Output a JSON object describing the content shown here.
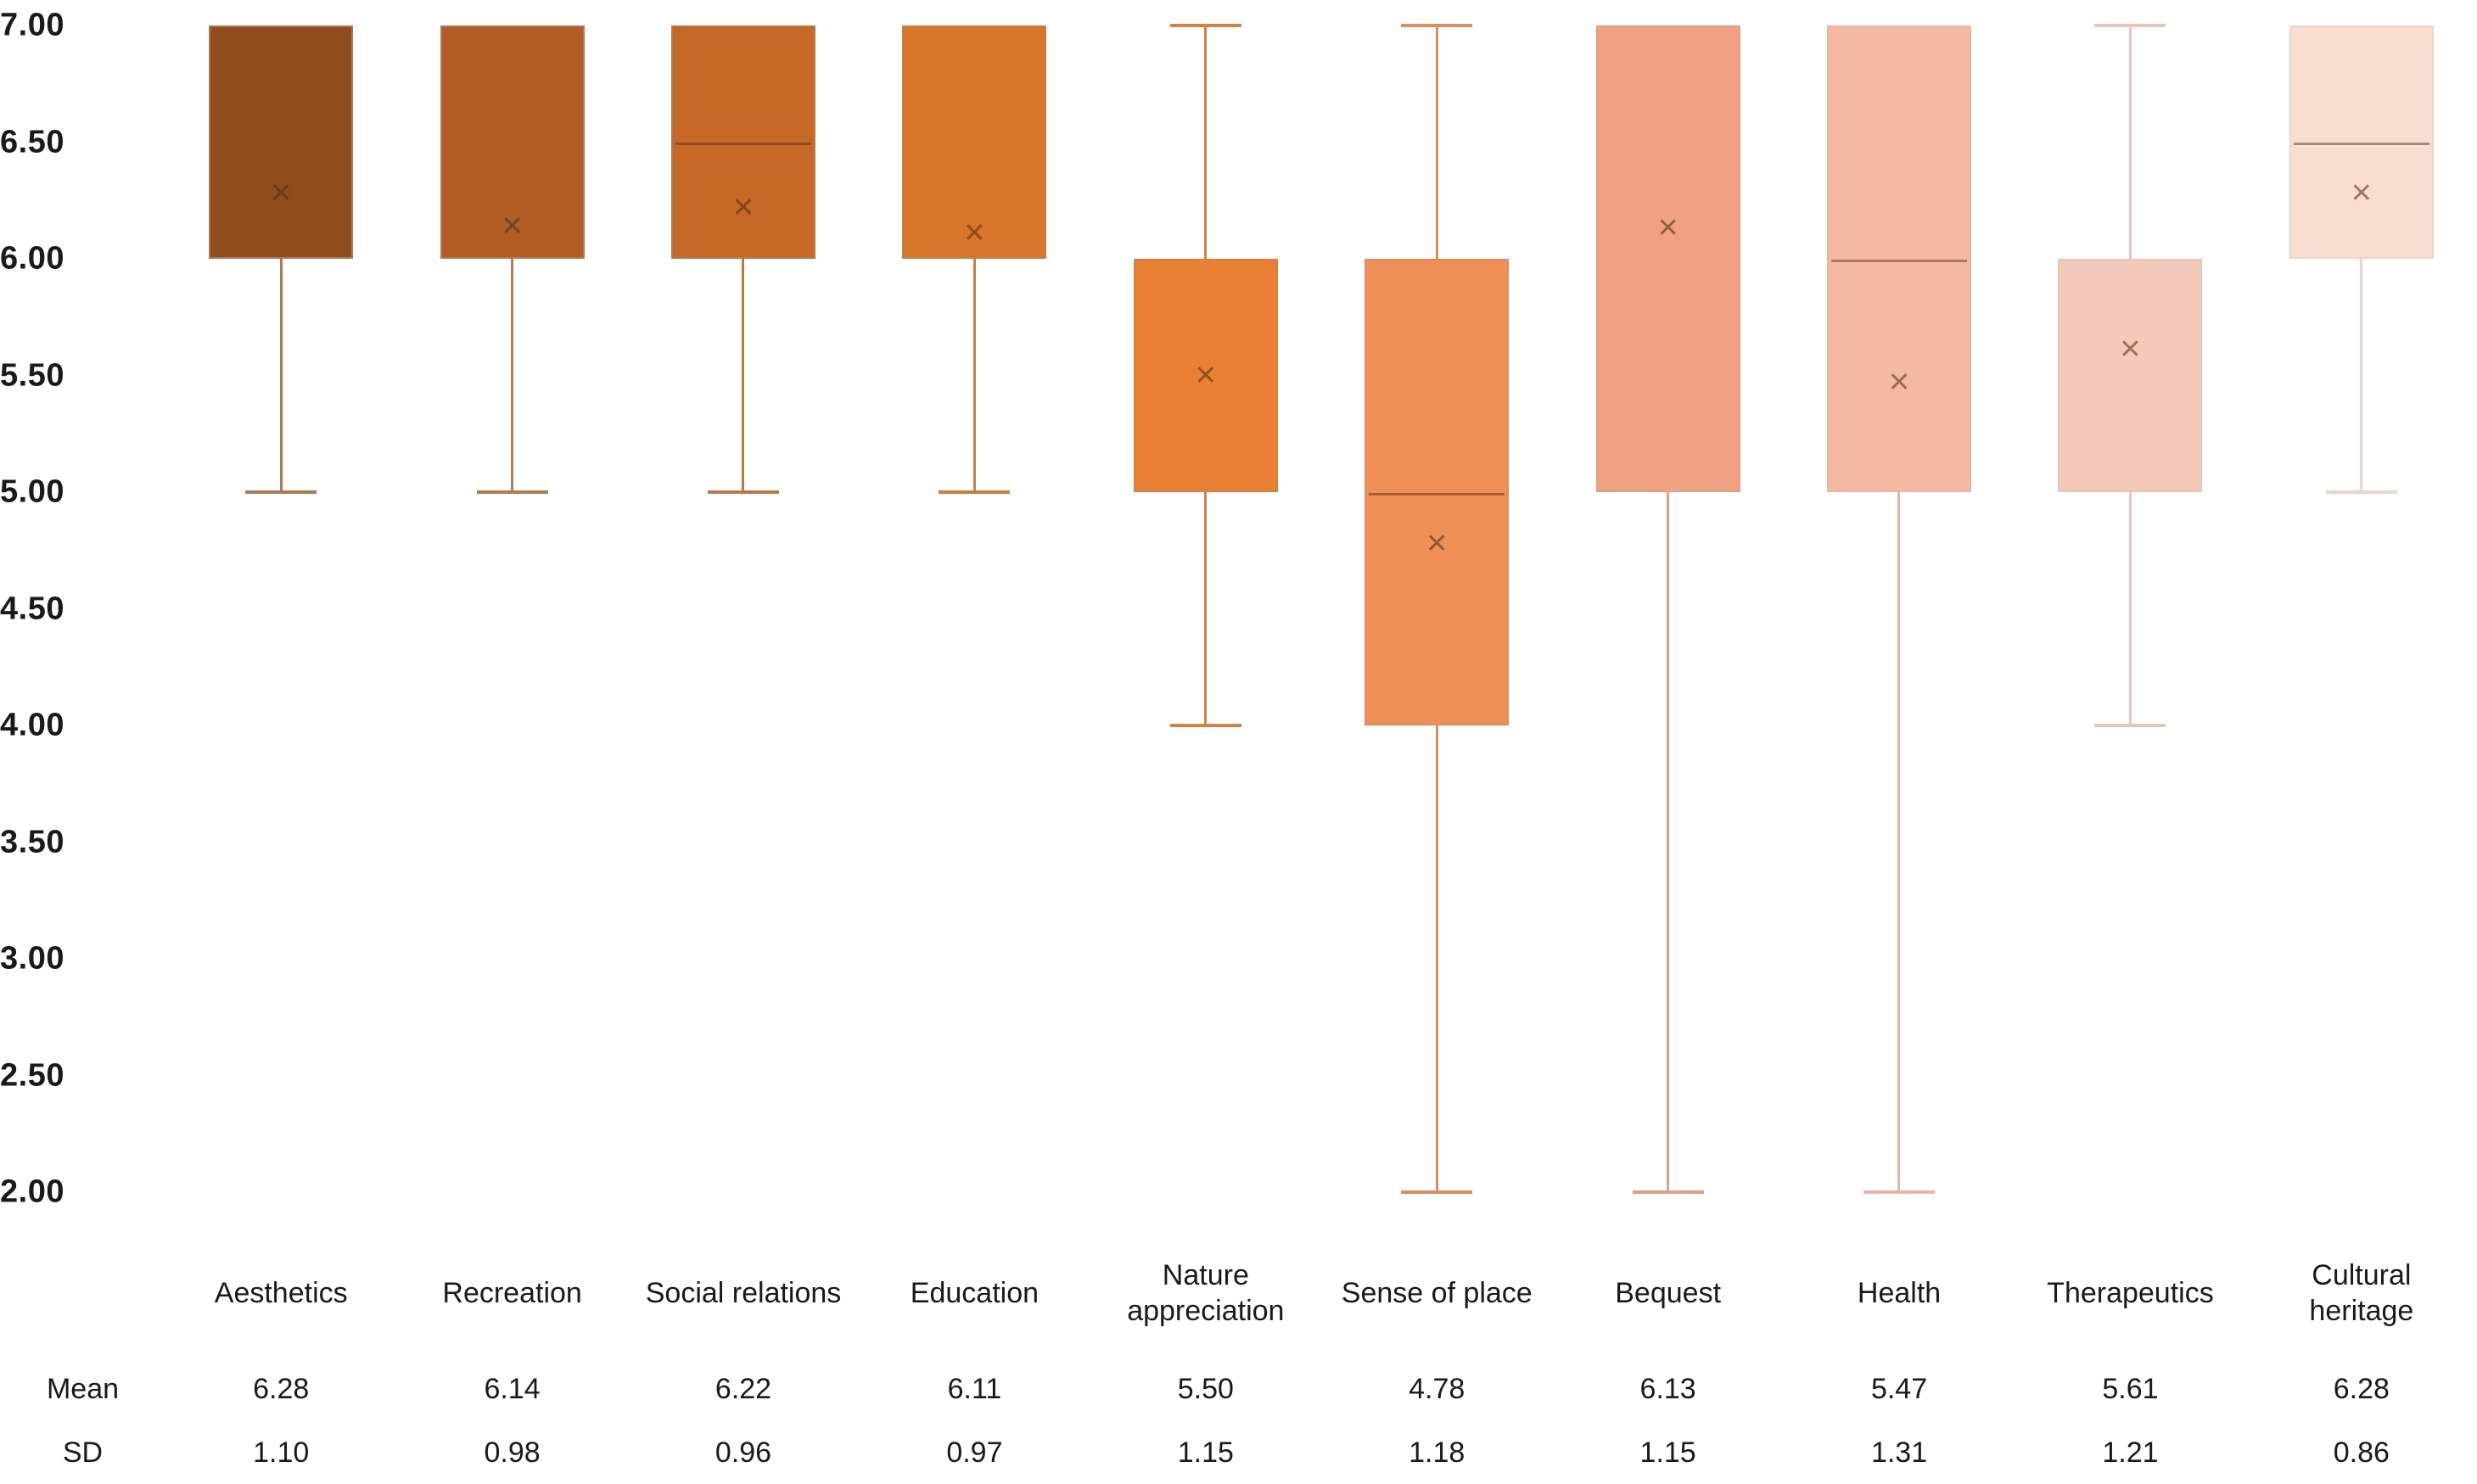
{
  "chart_data": {
    "type": "boxplot",
    "title": "",
    "xlabel": "",
    "ylabel": "",
    "ylim": [
      2.0,
      7.0
    ],
    "grid": false,
    "legend": "none",
    "y_ticks": [
      "7.00",
      "6.50",
      "6.00",
      "5.50",
      "5.00",
      "4.50",
      "4.00",
      "3.50",
      "3.00",
      "2.50",
      "2.00"
    ],
    "categories": [
      "Aesthetics",
      "Recreation",
      "Social relations",
      "Education",
      "Nature appreciation",
      "Sense of place",
      "Bequest",
      "Health",
      "Therapeutics",
      "Cultural heritage"
    ],
    "series": [
      {
        "name": "Aesthetics",
        "q1": 6.0,
        "median": null,
        "q3": 7.0,
        "whisker_low": 5.0,
        "whisker_high": 7.0,
        "mean": 6.28,
        "sd": 1.1,
        "fill": "#8F4D1E",
        "line": "#A97B54"
      },
      {
        "name": "Recreation",
        "q1": 6.0,
        "median": null,
        "q3": 7.0,
        "whisker_low": 5.0,
        "whisker_high": 7.0,
        "mean": 6.14,
        "sd": 0.98,
        "fill": "#B25D26",
        "line": "#B27B50"
      },
      {
        "name": "Social relations",
        "q1": 6.0,
        "median": 6.5,
        "q3": 7.0,
        "whisker_low": 5.0,
        "whisker_high": 7.0,
        "mean": 6.22,
        "sd": 0.96,
        "fill": "#C56828",
        "line": "#B8794A"
      },
      {
        "name": "Education",
        "q1": 6.0,
        "median": null,
        "q3": 7.0,
        "whisker_low": 5.0,
        "whisker_high": 7.0,
        "mean": 6.11,
        "sd": 0.97,
        "fill": "#DA752E",
        "line": "#C67F42"
      },
      {
        "name": "Nature appreciation",
        "q1": 5.0,
        "median": null,
        "q3": 6.0,
        "whisker_low": 4.0,
        "whisker_high": 7.0,
        "mean": 5.5,
        "sd": 1.15,
        "fill": "#E98034",
        "line": "#D08345"
      },
      {
        "name": "Sense of place",
        "q1": 4.0,
        "median": 5.0,
        "q3": 6.0,
        "whisker_low": 2.0,
        "whisker_high": 7.0,
        "mean": 4.78,
        "sd": 1.18,
        "fill": "#EF9059",
        "line": "#D98E60"
      },
      {
        "name": "Bequest",
        "q1": 5.0,
        "median": null,
        "q3": 7.0,
        "whisker_low": 2.0,
        "whisker_high": 7.0,
        "mean": 6.13,
        "sd": 1.15,
        "fill": "#F0A183",
        "line": "#DFA088"
      },
      {
        "name": "Health",
        "q1": 5.0,
        "median": 6.0,
        "q3": 7.0,
        "whisker_low": 2.0,
        "whisker_high": 7.0,
        "mean": 5.47,
        "sd": 1.31,
        "fill": "#F4B9A3",
        "line": "#E4B7A4"
      },
      {
        "name": "Therapeutics",
        "q1": 5.0,
        "median": null,
        "q3": 6.0,
        "whisker_low": 4.0,
        "whisker_high": 7.0,
        "mean": 5.61,
        "sd": 1.21,
        "fill": "#F5C9BA",
        "line": "#E6C6B8"
      },
      {
        "name": "Cultural heritage",
        "q1": 6.0,
        "median": 6.5,
        "q3": 7.0,
        "whisker_low": 5.0,
        "whisker_high": 7.0,
        "mean": 6.28,
        "sd": 0.86,
        "fill": "#FADDD1",
        "line": "#EDD5CB"
      }
    ],
    "table": {
      "rows": [
        {
          "label": "Mean",
          "values": [
            "6.28",
            "6.14",
            "6.22",
            "6.11",
            "5.50",
            "4.78",
            "6.13",
            "5.47",
            "5.61",
            "6.28"
          ]
        },
        {
          "label": "SD",
          "values": [
            "1.10",
            "0.98",
            "0.96",
            "0.97",
            "1.15",
            "1.18",
            "1.15",
            "1.31",
            "1.21",
            "0.86"
          ]
        }
      ]
    },
    "style": {
      "text_color": "#1a1a1a",
      "median_color": "rgba(80,40,15,0.45)",
      "mean_marker": "×",
      "mean_marker_color": "rgba(80,40,15,0.55)",
      "background": "#ffffff"
    }
  }
}
